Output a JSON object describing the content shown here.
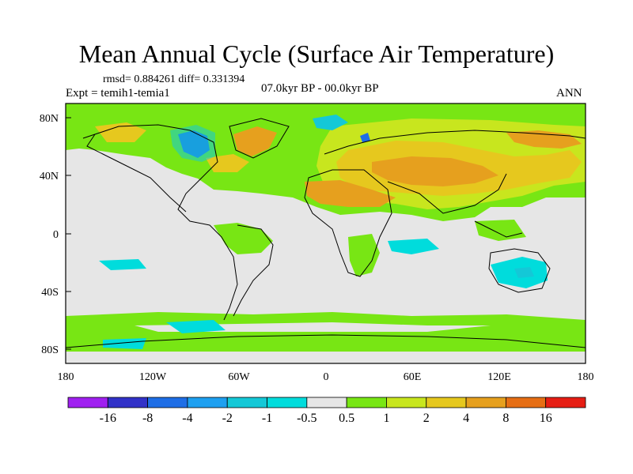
{
  "title": "Mean Annual Cycle (Surface Air Temperature)",
  "stats": "rmsd= 0.884261 diff= 0.331394",
  "expt": "Expt = temih1-temia1",
  "period": "07.0kyr BP - 00.0kyr BP",
  "season": "ANN",
  "lat_labels": [
    "80N",
    "40N",
    "0",
    "40S",
    "80S"
  ],
  "lon_labels": [
    "180",
    "120W",
    "60W",
    "0",
    "60E",
    "120E",
    "180"
  ],
  "colorbar": {
    "labels": [
      "-16",
      "-8",
      "-4",
      "-2",
      "-1",
      "-0.5",
      "0.5",
      "1",
      "2",
      "4",
      "8",
      "16"
    ],
    "colors": [
      "#a020f0",
      "#3232c8",
      "#1e6ee6",
      "#1ea0f0",
      "#14c8d7",
      "#00dcdc",
      "#e6e6e6",
      "#78e614",
      "#c8e61e",
      "#e6c81e",
      "#e6a01e",
      "#e66e14",
      "#e61e14"
    ]
  },
  "colors": {
    "land_bg": "#e6e6e6",
    "green": "#78e614",
    "yellow": "#c8e61e",
    "gold": "#e6c81e",
    "orange": "#e6a01e",
    "cyan": "#00dcdc",
    "lightblue": "#14c8d7",
    "blue": "#1e6ee6"
  }
}
